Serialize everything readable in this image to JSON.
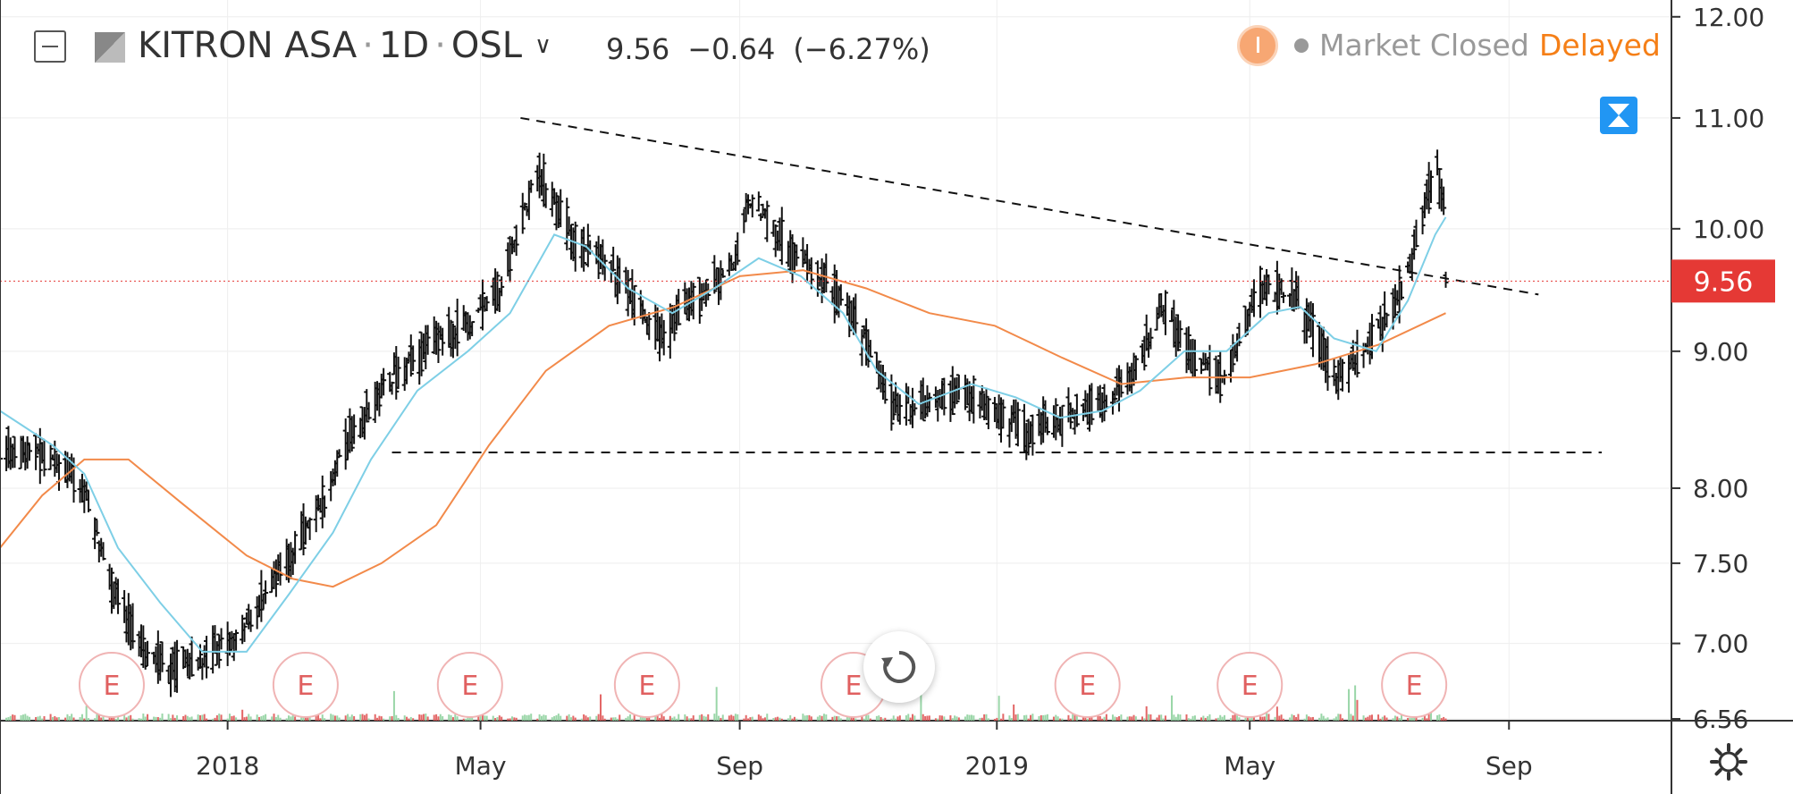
{
  "header": {
    "symbol_name": "KITRON ASA",
    "interval": "1D",
    "exchange": "OSL",
    "last_price": "9.56",
    "change": "−0.64",
    "change_pct": "(−6.27%)",
    "market_status": "Market Closed",
    "delay_status": "Delayed"
  },
  "colors": {
    "candle": "#111111",
    "ma_fast": "#7ecfe6",
    "ma_slow": "#f28a4a",
    "volume_up": "#8fd19e",
    "volume_down": "#e05656",
    "price_label_bg": "#e53935",
    "earnings": "#e06060",
    "delayed": "#f57f17",
    "accent": "#2196f3"
  },
  "icons": [
    "collapse-icon",
    "flag-icon",
    "chevron-down-icon",
    "alert-icon",
    "zoom-fit-icon",
    "reset-icon",
    "gear-icon"
  ],
  "chart_data": {
    "type": "candlestick",
    "y_scale": "log",
    "ylim": [
      6.55,
      12.1
    ],
    "y_ticks": [
      "6.56",
      "7.00",
      "7.50",
      "8.00",
      "9.00",
      "10.00",
      "11.00",
      "12.00"
    ],
    "x_ticks": [
      "2018",
      "May",
      "Sep",
      "2019",
      "May",
      "Sep"
    ],
    "last_price_label": "9.56",
    "earnings_label": "E",
    "earnings_dates": [
      "2017-11-07",
      "2018-02-07",
      "2018-04-26",
      "2018-07-19",
      "2018-10-25",
      "2019-02-13",
      "2019-05-01",
      "2019-07-18"
    ],
    "price_path": [
      [
        "2017-09-15",
        8.3
      ],
      [
        "2017-10-10",
        8.2
      ],
      [
        "2017-10-25",
        8.0
      ],
      [
        "2017-11-05",
        7.4
      ],
      [
        "2017-11-20",
        7.0
      ],
      [
        "2017-12-05",
        6.85
      ],
      [
        "2017-12-20",
        6.9
      ],
      [
        "2018-01-10",
        7.1
      ],
      [
        "2018-01-30",
        7.55
      ],
      [
        "2018-02-15",
        7.9
      ],
      [
        "2018-03-01",
        8.4
      ],
      [
        "2018-03-20",
        8.8
      ],
      [
        "2018-04-10",
        9.1
      ],
      [
        "2018-04-25",
        9.2
      ],
      [
        "2018-05-10",
        9.5
      ],
      [
        "2018-05-28",
        10.5
      ],
      [
        "2018-06-15",
        9.9
      ],
      [
        "2018-07-05",
        9.6
      ],
      [
        "2018-07-25",
        9.1
      ],
      [
        "2018-08-10",
        9.4
      ],
      [
        "2018-08-30",
        9.7
      ],
      [
        "2018-09-05",
        10.3
      ],
      [
        "2018-09-25",
        9.8
      ],
      [
        "2018-10-15",
        9.5
      ],
      [
        "2018-10-30",
        9.1
      ],
      [
        "2018-11-12",
        8.6
      ],
      [
        "2018-11-30",
        8.6
      ],
      [
        "2018-12-15",
        8.7
      ],
      [
        "2018-12-31",
        8.55
      ],
      [
        "2019-01-15",
        8.4
      ],
      [
        "2019-01-31",
        8.5
      ],
      [
        "2019-02-20",
        8.6
      ],
      [
        "2019-03-10",
        8.9
      ],
      [
        "2019-03-20",
        9.4
      ],
      [
        "2019-04-05",
        8.9
      ],
      [
        "2019-04-20",
        8.8
      ],
      [
        "2019-05-05",
        9.5
      ],
      [
        "2019-05-20",
        9.5
      ],
      [
        "2019-05-30",
        9.2
      ],
      [
        "2019-06-10",
        8.8
      ],
      [
        "2019-06-25",
        9.0
      ],
      [
        "2019-07-10",
        9.4
      ],
      [
        "2019-07-20",
        9.9
      ],
      [
        "2019-07-28",
        10.6
      ],
      [
        "2019-08-01",
        10.2
      ],
      [
        "2019-08-02",
        9.56
      ]
    ],
    "ma_fast_path": [
      [
        "2017-09-15",
        8.55
      ],
      [
        "2017-10-10",
        8.3
      ],
      [
        "2017-10-25",
        8.1
      ],
      [
        "2017-11-10",
        7.6
      ],
      [
        "2017-11-30",
        7.25
      ],
      [
        "2017-12-20",
        6.95
      ],
      [
        "2018-01-10",
        6.95
      ],
      [
        "2018-01-30",
        7.3
      ],
      [
        "2018-02-20",
        7.7
      ],
      [
        "2018-03-10",
        8.2
      ],
      [
        "2018-04-01",
        8.7
      ],
      [
        "2018-04-25",
        9.0
      ],
      [
        "2018-05-15",
        9.3
      ],
      [
        "2018-06-05",
        9.95
      ],
      [
        "2018-06-20",
        9.85
      ],
      [
        "2018-07-10",
        9.5
      ],
      [
        "2018-07-31",
        9.3
      ],
      [
        "2018-08-20",
        9.5
      ],
      [
        "2018-09-10",
        9.75
      ],
      [
        "2018-09-30",
        9.6
      ],
      [
        "2018-10-20",
        9.3
      ],
      [
        "2018-11-05",
        8.85
      ],
      [
        "2018-11-25",
        8.6
      ],
      [
        "2018-12-20",
        8.75
      ],
      [
        "2019-01-10",
        8.65
      ],
      [
        "2019-01-31",
        8.5
      ],
      [
        "2019-02-20",
        8.55
      ],
      [
        "2019-03-10",
        8.7
      ],
      [
        "2019-03-31",
        9.0
      ],
      [
        "2019-04-20",
        9.0
      ],
      [
        "2019-05-10",
        9.3
      ],
      [
        "2019-05-25",
        9.35
      ],
      [
        "2019-06-10",
        9.1
      ],
      [
        "2019-06-30",
        9.0
      ],
      [
        "2019-07-15",
        9.4
      ],
      [
        "2019-07-28",
        9.95
      ],
      [
        "2019-08-02",
        10.1
      ]
    ],
    "ma_slow_path": [
      [
        "2017-09-15",
        7.6
      ],
      [
        "2017-10-05",
        7.95
      ],
      [
        "2017-10-25",
        8.2
      ],
      [
        "2017-11-15",
        8.2
      ],
      [
        "2017-12-10",
        7.9
      ],
      [
        "2018-01-10",
        7.55
      ],
      [
        "2018-02-01",
        7.4
      ],
      [
        "2018-02-20",
        7.35
      ],
      [
        "2018-03-15",
        7.5
      ],
      [
        "2018-04-10",
        7.75
      ],
      [
        "2018-05-05",
        8.3
      ],
      [
        "2018-06-01",
        8.85
      ],
      [
        "2018-07-01",
        9.2
      ],
      [
        "2018-08-01",
        9.35
      ],
      [
        "2018-09-01",
        9.6
      ],
      [
        "2018-10-01",
        9.65
      ],
      [
        "2018-10-31",
        9.5
      ],
      [
        "2018-11-30",
        9.3
      ],
      [
        "2018-12-31",
        9.2
      ],
      [
        "2019-02-01",
        8.95
      ],
      [
        "2019-03-01",
        8.75
      ],
      [
        "2019-04-01",
        8.8
      ],
      [
        "2019-05-01",
        8.8
      ],
      [
        "2019-06-01",
        8.9
      ],
      [
        "2019-07-01",
        9.05
      ],
      [
        "2019-08-02",
        9.3
      ]
    ],
    "trendlines": [
      {
        "x1": "2018-05-20",
        "y1": 11.0,
        "x2": "2019-09-15",
        "y2": 9.45,
        "style": "dashed"
      },
      {
        "x1": "2018-03-20",
        "y1": 8.25,
        "x2": "2019-10-15",
        "y2": 8.25,
        "style": "dashed"
      }
    ]
  }
}
